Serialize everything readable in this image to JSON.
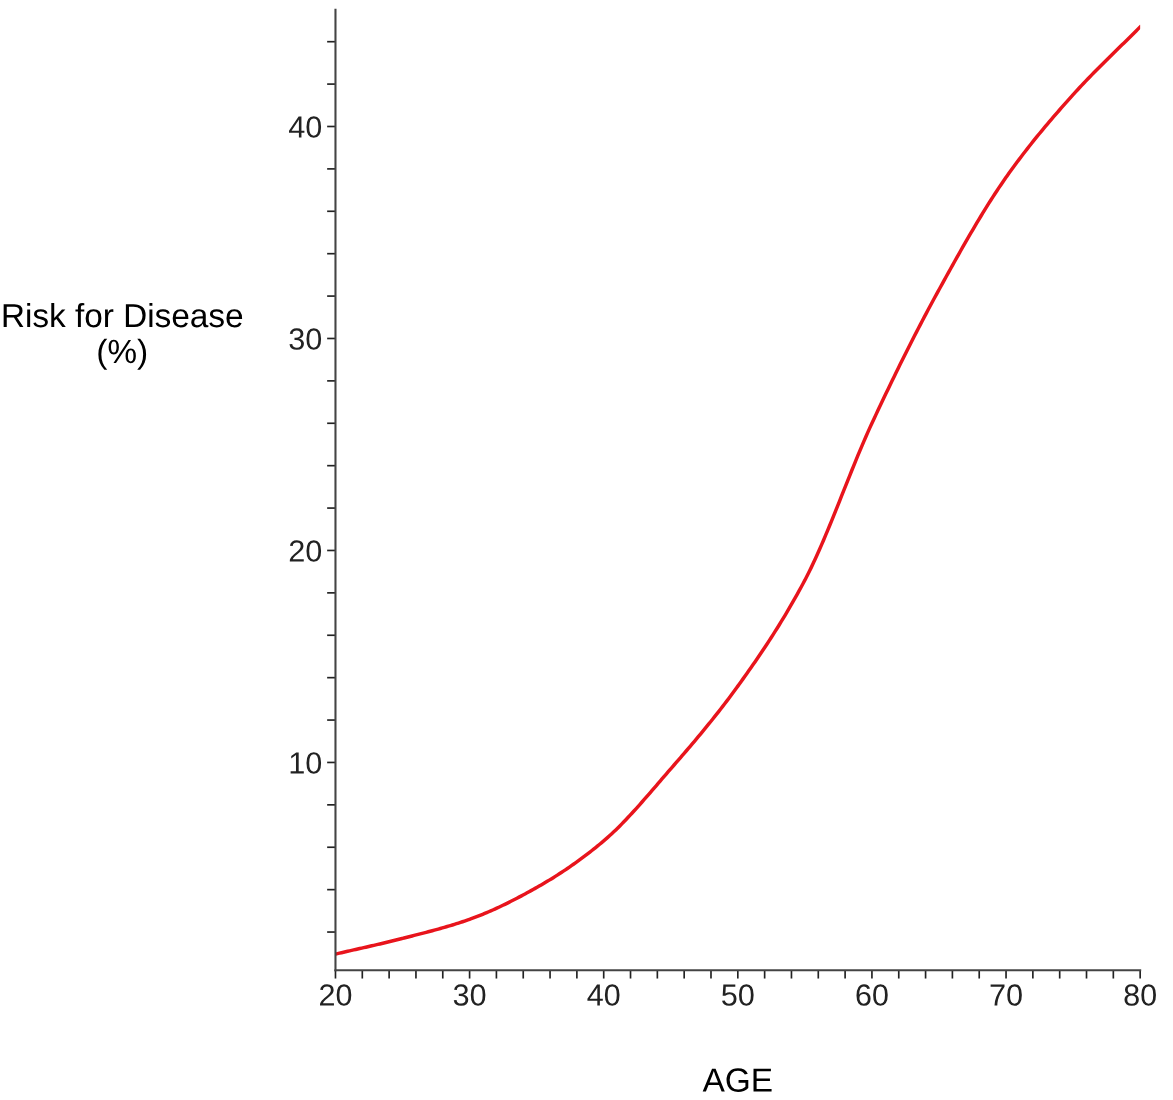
{
  "chart_data": {
    "type": "line",
    "xlabel": "AGE",
    "ylabel": "Risk for Disease\n(%)",
    "x": [
      20,
      25,
      30,
      35,
      40,
      45,
      50,
      55,
      60,
      65,
      70,
      75,
      80
    ],
    "series": [
      {
        "color": "#e8141c",
        "values": [
          0.96,
          1.7,
          2.6,
          4.1,
          6.3,
          9.7,
          13.6,
          18.6,
          26.0,
          32.3,
          37.6,
          41.5,
          44.7
        ]
      }
    ],
    "xlim": [
      20,
      80
    ],
    "ylim": [
      0.2,
      45.5
    ],
    "xticks": [
      20,
      {
        "value": 22,
        "label": null
      },
      {
        "value": 24,
        "label": null
      },
      {
        "value": 26,
        "label": null
      },
      {
        "value": 28,
        "label": null
      },
      30,
      {
        "value": 32,
        "label": null
      },
      {
        "value": 34,
        "label": null
      },
      {
        "value": 36,
        "label": null
      },
      {
        "value": 38,
        "label": null
      },
      40,
      {
        "value": 42,
        "label": null
      },
      {
        "value": 44,
        "label": null
      },
      {
        "value": 46,
        "label": null
      },
      {
        "value": 48,
        "label": null
      },
      50,
      {
        "value": 52,
        "label": null
      },
      {
        "value": 54,
        "label": null
      },
      {
        "value": 56,
        "label": null
      },
      {
        "value": 58,
        "label": null
      },
      60,
      {
        "value": 62,
        "label": null
      },
      {
        "value": 64,
        "label": null
      },
      {
        "value": 66,
        "label": null
      },
      {
        "value": 68,
        "label": null
      },
      70,
      {
        "value": 72,
        "label": null
      },
      {
        "value": 74,
        "label": null
      },
      {
        "value": 76,
        "label": null
      },
      {
        "value": 78,
        "label": null
      },
      80
    ],
    "yticks": [
      {
        "value": 2,
        "label": null
      },
      {
        "value": 4,
        "label": null
      },
      {
        "value": 6,
        "label": null
      },
      {
        "value": 8,
        "label": null
      },
      10,
      {
        "value": 12,
        "label": null
      },
      {
        "value": 14,
        "label": null
      },
      {
        "value": 16,
        "label": null
      },
      {
        "value": 18,
        "label": null
      },
      20,
      {
        "value": 22,
        "label": null
      },
      {
        "value": 24,
        "label": null
      },
      {
        "value": 26,
        "label": null
      },
      {
        "value": 28,
        "label": null
      },
      30,
      {
        "value": 32,
        "label": null
      },
      {
        "value": 34,
        "label": null
      },
      {
        "value": 36,
        "label": null
      },
      {
        "value": 38,
        "label": null
      },
      40,
      {
        "value": 42,
        "label": null
      },
      {
        "value": 44,
        "label": null
      }
    ],
    "grid": false,
    "legend": false,
    "marker": "none",
    "line_style": "solid"
  }
}
